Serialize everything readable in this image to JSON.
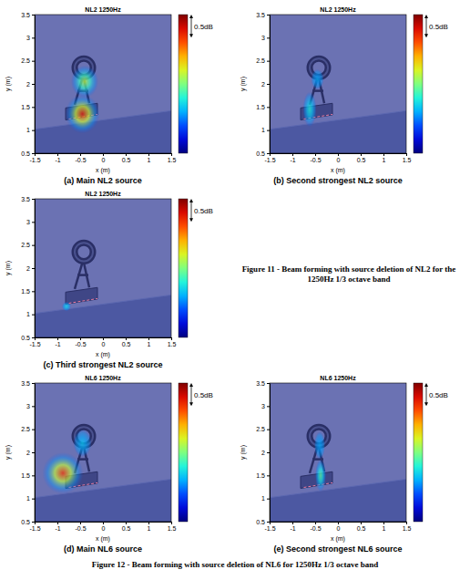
{
  "chart_data": [
    {
      "type": "heatmap",
      "title": "NL2 1250Hz",
      "caption": "(a) Main NL2 source",
      "x_label": "x (m)",
      "y_label": "y (m)",
      "xlim": [
        -1.5,
        1.5
      ],
      "ylim": [
        0.5,
        3.5
      ],
      "xticks": [
        -1.5,
        -1,
        -0.5,
        0,
        0.5,
        1,
        1.5
      ],
      "yticks": [
        0.5,
        1,
        1.5,
        2,
        2.5,
        3,
        3.5
      ],
      "colorbar_range": [
        -3,
        0
      ],
      "colorbar_span": 0.5,
      "colorbar_label": "0.5dB",
      "sources": [
        {
          "x": -0.4,
          "y": 2.05,
          "level": -1.3,
          "rx": 0.3,
          "ry": 0.35
        },
        {
          "x": -0.45,
          "y": 1.35,
          "level": -0.4,
          "rx": 0.38,
          "ry": 0.42
        }
      ]
    },
    {
      "type": "heatmap",
      "title": "NL2 1250Hz",
      "caption": "(b) Second strongest NL2 source",
      "x_label": "x (m)",
      "y_label": "y (m)",
      "xlim": [
        -1.5,
        1.5
      ],
      "ylim": [
        0.5,
        3.5
      ],
      "xticks": [
        -1.5,
        -1,
        -0.5,
        0,
        0.5,
        1,
        1.5
      ],
      "yticks": [
        0.5,
        1,
        1.5,
        2,
        2.5,
        3,
        3.5
      ],
      "colorbar_range": [
        -3,
        0
      ],
      "colorbar_span": 0.5,
      "colorbar_label": "0.5dB",
      "sources": [
        {
          "x": -0.45,
          "y": 2.1,
          "level": -2.1,
          "rx": 0.14,
          "ry": 0.22
        },
        {
          "x": -0.62,
          "y": 1.45,
          "level": -1.8,
          "rx": 0.15,
          "ry": 0.38
        }
      ]
    },
    {
      "type": "heatmap",
      "title": "NL2 1250Hz",
      "caption": "(c) Third strongest NL2 source",
      "x_label": "x (m)",
      "y_label": "y (m)",
      "xlim": [
        -1.5,
        1.5
      ],
      "ylim": [
        0.5,
        3.5
      ],
      "xticks": [
        -1.5,
        -1,
        -0.5,
        0,
        0.5,
        1,
        1.5
      ],
      "yticks": [
        0.5,
        1,
        1.5,
        2,
        2.5,
        3,
        3.5
      ],
      "colorbar_range": [
        -3,
        0
      ],
      "colorbar_span": 0.5,
      "colorbar_label": "0.5dB",
      "sources": [
        {
          "x": -0.8,
          "y": 1.17,
          "level": -1.9,
          "rx": 0.1,
          "ry": 0.1
        }
      ]
    },
    {
      "type": "heatmap",
      "title": "NL6 1250Hz",
      "caption": "(d) Main NL6 source",
      "x_label": "x (m)",
      "y_label": "y (m)",
      "xlim": [
        -1.5,
        1.5
      ],
      "ylim": [
        0.5,
        3.5
      ],
      "xticks": [
        -1.5,
        -1,
        -0.5,
        0,
        0.5,
        1,
        1.5
      ],
      "yticks": [
        0.5,
        1,
        1.5,
        2,
        2.5,
        3,
        3.5
      ],
      "colorbar_range": [
        -3,
        0
      ],
      "colorbar_span": 0.5,
      "colorbar_label": "0.5dB",
      "sources": [
        {
          "x": -0.45,
          "y": 2.2,
          "level": -2.0,
          "rx": 0.2,
          "ry": 0.3
        },
        {
          "x": -0.88,
          "y": 1.55,
          "level": -0.5,
          "rx": 0.45,
          "ry": 0.45
        }
      ]
    },
    {
      "type": "heatmap",
      "title": "NL6 1250Hz",
      "caption": "(e) Second strongest NL6 source",
      "x_label": "x (m)",
      "y_label": "y (m)",
      "xlim": [
        -1.5,
        1.5
      ],
      "ylim": [
        0.5,
        3.5
      ],
      "xticks": [
        -1.5,
        -1,
        -0.5,
        0,
        0.5,
        1,
        1.5
      ],
      "yticks": [
        0.5,
        1,
        1.5,
        2,
        2.5,
        3,
        3.5
      ],
      "colorbar_range": [
        -3,
        0
      ],
      "colorbar_span": 0.5,
      "colorbar_label": "0.5dB",
      "sources": [
        {
          "x": -0.4,
          "y": 2.15,
          "level": -2.1,
          "rx": 0.12,
          "ry": 0.3
        },
        {
          "x": -0.38,
          "y": 1.5,
          "level": -1.6,
          "rx": 0.12,
          "ry": 0.35
        }
      ]
    }
  ],
  "figures": [
    {
      "caption": "Figure 11 - Beam forming with source deletion of NL2 for the 1250Hz 1/3 octave band"
    },
    {
      "caption": "Figure 12 - Beam forming with source deletion of NL6 for 1250Hz 1/3 octave band"
    }
  ]
}
